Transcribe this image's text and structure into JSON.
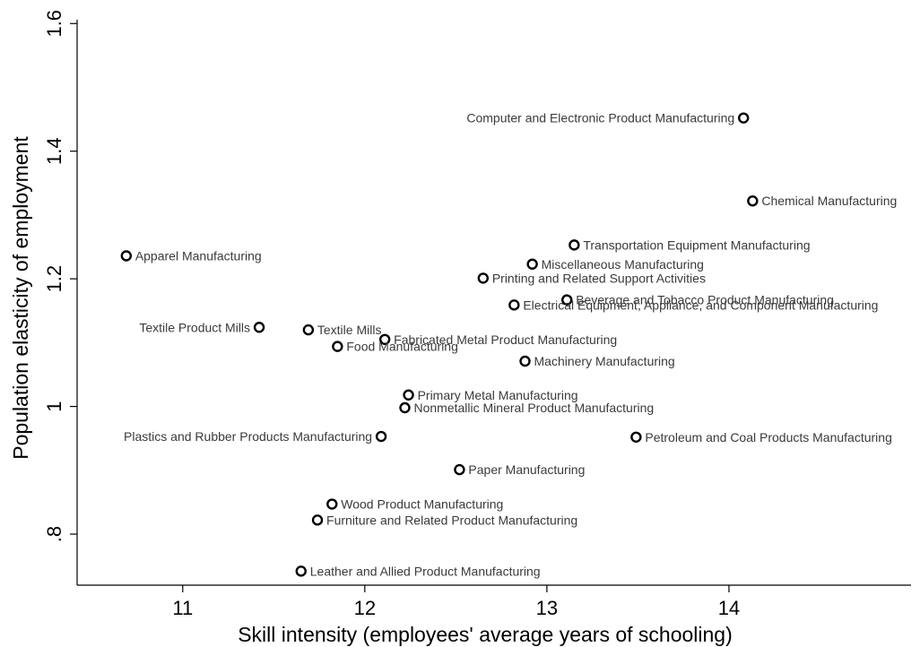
{
  "chart_data": {
    "type": "scatter",
    "title": "",
    "xlabel": "Skill intensity (employees' average years of schooling)",
    "ylabel": "Population elasticity of employment",
    "xlim": [
      10.42,
      15.0
    ],
    "ylim": [
      0.72,
      1.62
    ],
    "xticks": [
      11,
      12,
      13,
      14
    ],
    "xtick_labels": [
      "11",
      "12",
      "13",
      "14"
    ],
    "yticks": [
      0.8,
      1.0,
      1.2,
      1.4,
      1.6
    ],
    "ytick_labels": [
      ".8",
      "1",
      "1.2",
      "1.4",
      "1.6"
    ],
    "grid": false,
    "legend": "none",
    "points": [
      {
        "label": "Computer and Electronic Product Manufacturing",
        "x": 14.08,
        "y": 1.452,
        "side": "left"
      },
      {
        "label": "Chemical Manufacturing",
        "x": 14.13,
        "y": 1.322,
        "side": "right"
      },
      {
        "label": "Transportation Equipment Manufacturing",
        "x": 13.15,
        "y": 1.253,
        "side": "right"
      },
      {
        "label": "Apparel Manufacturing",
        "x": 10.69,
        "y": 1.236,
        "side": "right"
      },
      {
        "label": "Miscellaneous Manufacturing",
        "x": 12.92,
        "y": 1.223,
        "side": "right"
      },
      {
        "label": "Printing and Related Support Activities",
        "x": 12.65,
        "y": 1.201,
        "side": "right"
      },
      {
        "label": "Beverage and Tobacco Product Manufacturing",
        "x": 13.11,
        "y": 1.167,
        "side": "right"
      },
      {
        "label": "Electrical Equipment, Appliance, and Component Manufacturing",
        "x": 12.82,
        "y": 1.159,
        "side": "right"
      },
      {
        "label": "Textile Product Mills",
        "x": 11.42,
        "y": 1.124,
        "side": "left"
      },
      {
        "label": "Textile Mills",
        "x": 11.69,
        "y": 1.12,
        "side": "right"
      },
      {
        "label": "Fabricated Metal Product Manufacturing",
        "x": 12.11,
        "y": 1.105,
        "side": "right"
      },
      {
        "label": "Food Manufacturing",
        "x": 11.85,
        "y": 1.094,
        "side": "right"
      },
      {
        "label": "Machinery Manufacturing",
        "x": 12.88,
        "y": 1.071,
        "side": "right"
      },
      {
        "label": "Primary Metal Manufacturing",
        "x": 12.24,
        "y": 1.018,
        "side": "right"
      },
      {
        "label": "Nonmetallic Mineral Product Manufacturing",
        "x": 12.22,
        "y": 0.998,
        "side": "right"
      },
      {
        "label": "Plastics and Rubber Products Manufacturing",
        "x": 12.09,
        "y": 0.953,
        "side": "left"
      },
      {
        "label": "Petroleum and Coal Products Manufacturing",
        "x": 13.49,
        "y": 0.952,
        "side": "right"
      },
      {
        "label": "Paper Manufacturing",
        "x": 12.52,
        "y": 0.901,
        "side": "right"
      },
      {
        "label": "Wood Product Manufacturing",
        "x": 11.82,
        "y": 0.847,
        "side": "right"
      },
      {
        "label": "Furniture and Related Product Manufacturing",
        "x": 11.74,
        "y": 0.822,
        "side": "right"
      },
      {
        "label": "Leather and Allied Product Manufacturing",
        "x": 11.65,
        "y": 0.742,
        "side": "right"
      }
    ]
  }
}
